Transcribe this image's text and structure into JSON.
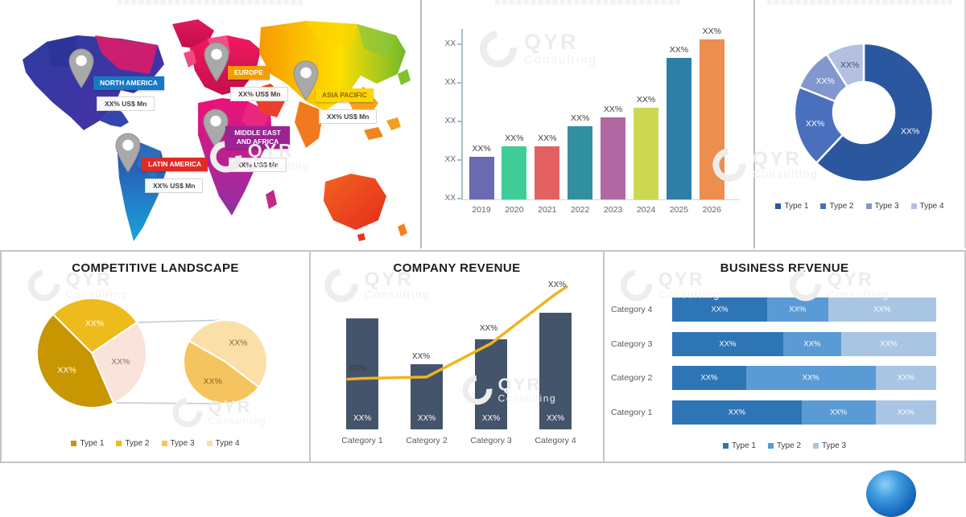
{
  "watermark": {
    "brand": "QYR",
    "sub": "Consulting"
  },
  "chart_data": [
    {
      "id": "regional-market-map",
      "type": "map",
      "title": "",
      "regions": [
        {
          "name": "NORTH AMERICA",
          "value": "XX% US$ Mn",
          "badge_color": "#1778c5",
          "text_color": "#ffffff"
        },
        {
          "name": "EUROPE",
          "value": "XX% US$ Mn",
          "badge_color": "#f59c00",
          "text_color": "#ffffff"
        },
        {
          "name": "ASIA PACIFIC",
          "value": "XX% US$ Mn",
          "badge_color": "#ffd503",
          "text_color": "#8a6a00"
        },
        {
          "name": "MIDDLE EAST AND AFRICA",
          "value": "XX% US$ Mn",
          "badge_color": "#9c2492",
          "text_color": "#ffffff"
        },
        {
          "name": "LATIN AMERICA",
          "value": "XX% US$ Mn",
          "badge_color": "#e12a26",
          "text_color": "#ffffff"
        }
      ]
    },
    {
      "id": "annual-bar",
      "type": "bar",
      "categories": [
        "2019",
        "2020",
        "2021",
        "2022",
        "2023",
        "2024",
        "2025",
        "2026"
      ],
      "values_pct_of_axis": [
        25,
        31,
        31,
        43,
        48,
        54,
        83,
        94
      ],
      "bar_labels": [
        "XX%",
        "XX%",
        "XX%",
        "XX%",
        "XX%",
        "XX%",
        "XX%",
        "XX%"
      ],
      "ytick_labels": [
        "XX",
        "XX",
        "XX",
        "XX",
        "XX"
      ],
      "colors": [
        "#6a6ab2",
        "#3ecd97",
        "#e26160",
        "#31909f",
        "#b168a2",
        "#ccd950",
        "#2e7fa8",
        "#ec8e4e"
      ]
    },
    {
      "id": "type-share-donut",
      "type": "pie",
      "donut": true,
      "segments": [
        {
          "name": "Type 1",
          "pct": 62,
          "label": "XX%",
          "color": "#2b579f",
          "label_color": "#ffffff"
        },
        {
          "name": "Type 2",
          "pct": 19,
          "label": "XX%",
          "color": "#4a6fbd",
          "label_color": "#ffffff"
        },
        {
          "name": "Type 3",
          "pct": 10,
          "label": "XX%",
          "color": "#8296cf",
          "label_color": "#ffffff"
        },
        {
          "name": "Type 4",
          "pct": 9,
          "label": "XX%",
          "color": "#b3c0e2",
          "label_color": "#44505f"
        }
      ]
    },
    {
      "id": "competitive-landscape",
      "type": "pie-of-pie",
      "title": "COMPETITIVE LANDSCAPE",
      "main_pie": [
        {
          "name": "Type 2",
          "pct": 28,
          "label": "XX%",
          "color": "#eebb1d",
          "label_color": "#ffffff",
          "start_deg": -45
        },
        {
          "name": "Other",
          "pct": 28,
          "label": "XX%",
          "color": "#fae3da",
          "label_color": "#8c7365"
        },
        {
          "name": "Type 1",
          "pct": 44,
          "label": "XX%",
          "color": "#c79600",
          "label_color": "#ffffff"
        }
      ],
      "secondary_pie": [
        {
          "name": "Type 4",
          "pct": 52,
          "label": "XX%",
          "color": "#fbdfa9",
          "label_color": "#8c6a2a",
          "start_deg": -60
        },
        {
          "name": "Type 3",
          "pct": 48,
          "label": "XX%",
          "color": "#f6c45e",
          "label_color": "#8c5f1d"
        }
      ],
      "legend": [
        {
          "name": "Type 1",
          "color": "#c79600"
        },
        {
          "name": "Type 2",
          "color": "#eebb1d"
        },
        {
          "name": "Type 3",
          "color": "#f6c45e"
        },
        {
          "name": "Type 4",
          "color": "#fbdfa9"
        }
      ]
    },
    {
      "id": "company-revenue",
      "type": "bar+line",
      "title": "COMPANY REVENUE",
      "categories": [
        "Category 1",
        "Category 2",
        "Category 3",
        "Category 4"
      ],
      "bar_values_pct": [
        76,
        45,
        62,
        80
      ],
      "bar_labels": [
        "XX%",
        "XX%",
        "XX%",
        "XX%"
      ],
      "line_values_pct": [
        35,
        36,
        59,
        93
      ],
      "line_labels": [
        "XX%",
        "XX%",
        "XX%",
        "XX%"
      ],
      "bar_color": "#44546a",
      "line_color": "#f2b31c"
    },
    {
      "id": "business-revenue",
      "type": "stacked-bar-horizontal",
      "title": "BUSINESS REVENUE",
      "categories": [
        "Category 4",
        "Category 3",
        "Category 2",
        "Category 1"
      ],
      "series": [
        {
          "name": "Type 1",
          "color": "#2e75b6",
          "values": [
            36,
            42,
            28,
            49
          ]
        },
        {
          "name": "Type 2",
          "color": "#5b9bd5",
          "values": [
            23,
            22,
            49,
            28
          ]
        },
        {
          "name": "Type 3",
          "color": "#a9c5e4",
          "values": [
            41,
            36,
            23,
            23
          ]
        }
      ],
      "segment_label": "XX%"
    }
  ]
}
